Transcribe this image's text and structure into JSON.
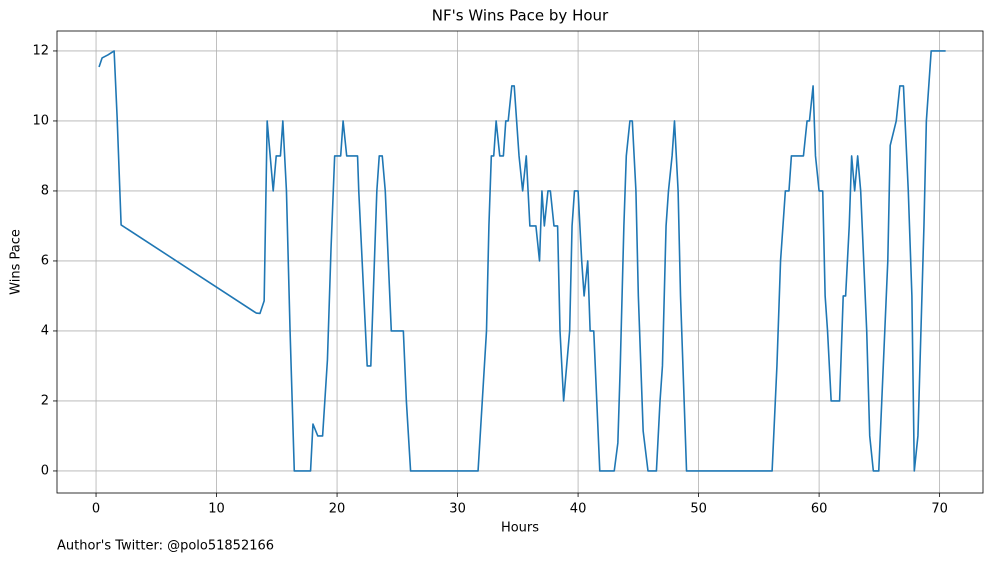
{
  "chart_data": {
    "type": "line",
    "title": "NF's Wins Pace by Hour",
    "xlabel": "Hours",
    "ylabel": "Wins Pace",
    "annotation": "Author's Twitter: @polo51852166",
    "x": [
      0.25,
      0.5,
      1.0,
      1.5,
      1.75,
      2.08,
      13.3,
      13.6,
      13.95,
      14.2,
      14.7,
      14.95,
      15.3,
      15.5,
      15.8,
      16.1,
      16.45,
      17.8,
      18.0,
      18.4,
      18.8,
      19.2,
      19.5,
      19.8,
      20.3,
      20.5,
      20.8,
      21.7,
      21.8,
      22.5,
      22.8,
      23.1,
      23.3,
      23.5,
      23.75,
      24.0,
      24.5,
      25.5,
      25.75,
      26.1,
      31.7,
      32.4,
      32.6,
      32.8,
      33.0,
      33.2,
      33.5,
      33.8,
      34.0,
      34.2,
      34.5,
      34.7,
      35.1,
      35.4,
      35.7,
      36.0,
      36.5,
      36.8,
      37.0,
      37.2,
      37.5,
      37.7,
      38.0,
      38.3,
      38.5,
      38.8,
      39.3,
      39.5,
      39.7,
      40.0,
      40.3,
      40.5,
      40.8,
      41.0,
      41.3,
      41.8,
      43.0,
      43.3,
      43.5,
      43.8,
      44.0,
      44.3,
      44.5,
      44.8,
      45.0,
      45.4,
      45.8,
      46.5,
      46.8,
      47.0,
      47.3,
      47.5,
      47.8,
      48.0,
      48.3,
      48.5,
      48.8,
      49.0,
      56.1,
      56.5,
      56.8,
      57.2,
      57.5,
      57.7,
      58.7,
      59.0,
      59.2,
      59.5,
      59.7,
      60.0,
      60.3,
      60.5,
      60.7,
      61.0,
      61.7,
      62.0,
      62.2,
      62.5,
      62.7,
      62.95,
      63.2,
      63.45,
      63.95,
      64.2,
      64.5,
      64.95,
      65.2,
      65.7,
      65.9,
      66.4,
      66.7,
      67.0,
      67.4,
      67.7,
      67.9,
      68.2,
      68.7,
      68.9,
      69.3,
      70.5
    ],
    "series": [
      {
        "name": "Wins Pace",
        "color": "#1f77b4",
        "values": [
          11.54,
          11.8,
          11.89,
          12,
          10.1,
          7.03,
          4.51,
          4.5,
          4.86,
          10,
          8,
          9,
          9,
          10,
          8,
          4,
          0,
          0,
          1.34,
          1,
          1,
          3.17,
          6.37,
          9,
          9,
          10,
          9,
          9,
          8,
          3,
          3,
          6,
          8,
          9,
          9,
          8,
          4,
          4,
          2,
          0,
          0,
          4,
          7,
          9,
          9,
          10,
          9,
          9,
          10,
          10,
          11,
          11,
          9,
          8,
          9,
          7,
          7,
          6,
          8,
          7,
          8,
          8,
          7,
          7,
          4,
          2,
          4,
          7,
          8,
          8,
          6,
          5,
          6,
          4,
          4,
          0,
          0,
          0.8,
          3,
          7,
          9,
          10,
          10,
          8,
          5,
          1.14,
          0,
          0,
          2,
          3,
          7,
          8,
          9,
          10,
          8,
          5,
          2,
          0,
          0,
          3,
          6,
          8,
          8,
          9,
          9,
          10,
          10,
          11,
          9,
          8,
          8,
          5,
          4,
          2,
          2,
          5,
          5,
          7,
          9,
          8,
          9,
          8,
          4,
          1,
          0,
          0,
          2,
          6,
          9.3,
          10,
          11,
          11,
          8,
          5,
          0,
          1,
          7,
          10,
          12,
          12
        ]
      }
    ],
    "xlim": [
      -3.24,
      73.6
    ],
    "ylim": [
      -0.63,
      12.57
    ],
    "xticks": [
      0,
      10,
      20,
      30,
      40,
      50,
      60,
      70
    ],
    "yticks": [
      0,
      2,
      4,
      6,
      8,
      10,
      12
    ],
    "grid": true
  }
}
